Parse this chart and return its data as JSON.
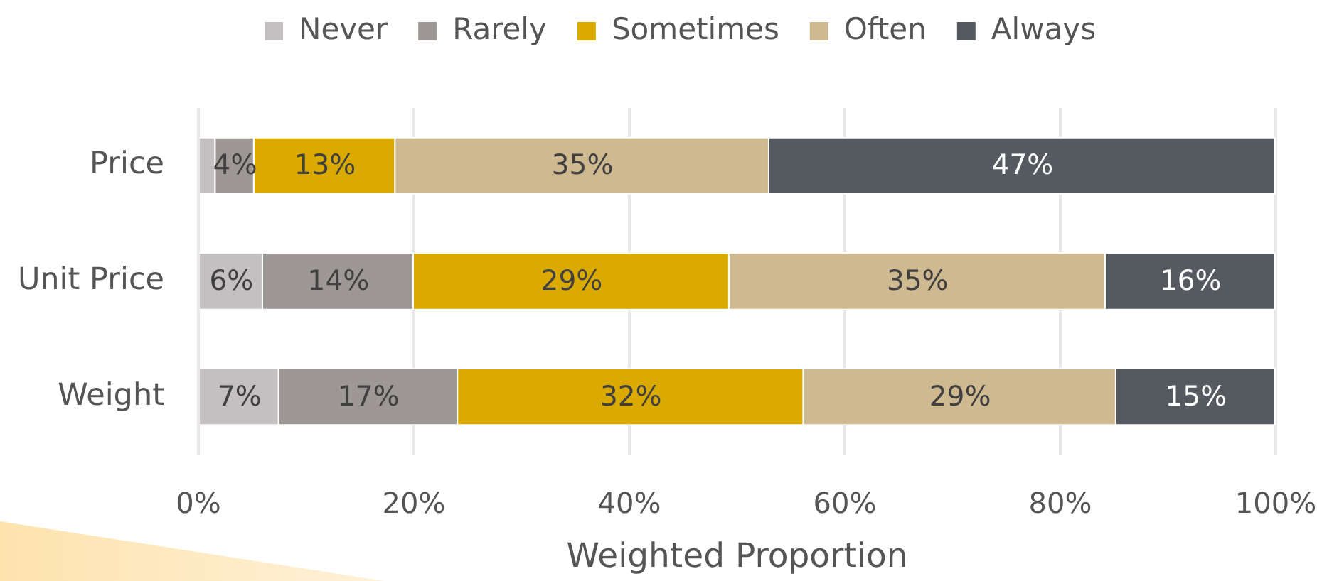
{
  "chart_data": {
    "type": "bar",
    "orientation": "horizontal",
    "stacked": true,
    "categories": [
      "Price",
      "Unit Price",
      "Weight"
    ],
    "series": [
      {
        "name": "Never",
        "color": "#c4bfc0",
        "values": [
          1.6,
          6,
          7.5
        ],
        "value_labels": [
          null,
          "6%",
          "7%"
        ]
      },
      {
        "name": "Rarely",
        "color": "#9d9795",
        "values": [
          3.6,
          14,
          16.6
        ],
        "value_labels": [
          "4%",
          "14%",
          "17%"
        ]
      },
      {
        "name": "Sometimes",
        "color": "#daaa00",
        "values": [
          13.1,
          29.3,
          32.1
        ],
        "value_labels": [
          "13%",
          "29%",
          "32%"
        ]
      },
      {
        "name": "Often",
        "color": "#cfb991",
        "values": [
          34.7,
          34.9,
          29
        ],
        "value_labels": [
          "35%",
          "35%",
          "29%"
        ]
      },
      {
        "name": "Always",
        "color": "#555960",
        "values": [
          47,
          15.8,
          14.8
        ],
        "value_labels": [
          "47%",
          "16%",
          "15%"
        ]
      }
    ],
    "xlabel": "Weighted Proportion",
    "xlim": [
      0,
      100
    ],
    "xticks": [
      {
        "value": 0,
        "label": "0%"
      },
      {
        "value": 20,
        "label": "20%"
      },
      {
        "value": 40,
        "label": "40%"
      },
      {
        "value": 60,
        "label": "60%"
      },
      {
        "value": 80,
        "label": "80%"
      },
      {
        "value": 100,
        "label": "100%"
      }
    ],
    "grid": "x",
    "legend": "top"
  }
}
